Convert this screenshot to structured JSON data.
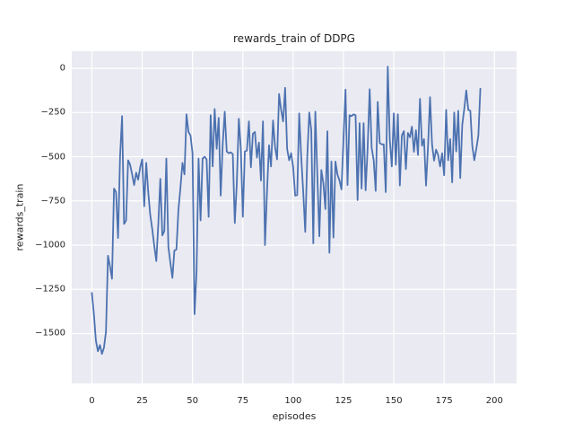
{
  "chart_data": {
    "type": "line",
    "title": "rewards_train of DDPG",
    "xlabel": "episodes",
    "ylabel": "rewards_train",
    "x_ticks": [
      0,
      25,
      50,
      75,
      100,
      125,
      150,
      175,
      200
    ],
    "y_ticks": [
      0,
      -250,
      -500,
      -750,
      -1000,
      -1250,
      -1500
    ],
    "xlim": [
      -10,
      211
    ],
    "ylim": [
      -1782,
      97
    ],
    "grid": true,
    "legend": null,
    "colors": {
      "line": "#4C72B0",
      "plot_background": "#EAEAF2",
      "grid": "#FFFFFF",
      "text": "#262626",
      "figure_background": "#FFFFFF"
    },
    "series": [
      {
        "name": "rewards_train",
        "x_start": 0,
        "x_step": 1,
        "values": [
          -1270,
          -1390,
          -1540,
          -1600,
          -1565,
          -1615,
          -1580,
          -1490,
          -1060,
          -1120,
          -1190,
          -680,
          -700,
          -960,
          -500,
          -270,
          -880,
          -860,
          -520,
          -545,
          -600,
          -660,
          -590,
          -630,
          -560,
          -515,
          -780,
          -535,
          -700,
          -830,
          -910,
          -1005,
          -1090,
          -880,
          -625,
          -945,
          -920,
          -510,
          -1010,
          -1100,
          -1185,
          -1030,
          -1025,
          -800,
          -675,
          -535,
          -600,
          -260,
          -360,
          -380,
          -480,
          -1390,
          -1150,
          -510,
          -860,
          -510,
          -500,
          -515,
          -840,
          -265,
          -555,
          -230,
          -455,
          -280,
          -720,
          -430,
          -245,
          -470,
          -480,
          -475,
          -485,
          -875,
          -650,
          -285,
          -455,
          -840,
          -470,
          -465,
          -300,
          -560,
          -370,
          -360,
          -505,
          -420,
          -635,
          -300,
          -1000,
          -700,
          -435,
          -555,
          -295,
          -445,
          -515,
          -145,
          -235,
          -300,
          -110,
          -455,
          -520,
          -480,
          -560,
          -720,
          -717,
          -255,
          -500,
          -700,
          -925,
          -500,
          -250,
          -350,
          -990,
          -245,
          -600,
          -950,
          -575,
          -650,
          -796,
          -356,
          -1043,
          -527,
          -957,
          -527,
          -600,
          -634,
          -685,
          -400,
          -120,
          -660,
          -265,
          -270,
          -260,
          -265,
          -745,
          -310,
          -680,
          -310,
          -690,
          -450,
          -118,
          -450,
          -520,
          -693,
          -190,
          -423,
          -430,
          -430,
          -700,
          10,
          -405,
          -555,
          -255,
          -545,
          -260,
          -663,
          -380,
          -355,
          -570,
          -365,
          -390,
          -330,
          -472,
          -350,
          -490,
          -172,
          -438,
          -400,
          -663,
          -440,
          -163,
          -430,
          -522,
          -460,
          -490,
          -555,
          -480,
          -605,
          -235,
          -520,
          -400,
          -645,
          -250,
          -470,
          -240,
          -620,
          -320,
          -230,
          -125,
          -235,
          -240,
          -440,
          -520,
          -455,
          -380,
          -115
        ]
      }
    ]
  }
}
